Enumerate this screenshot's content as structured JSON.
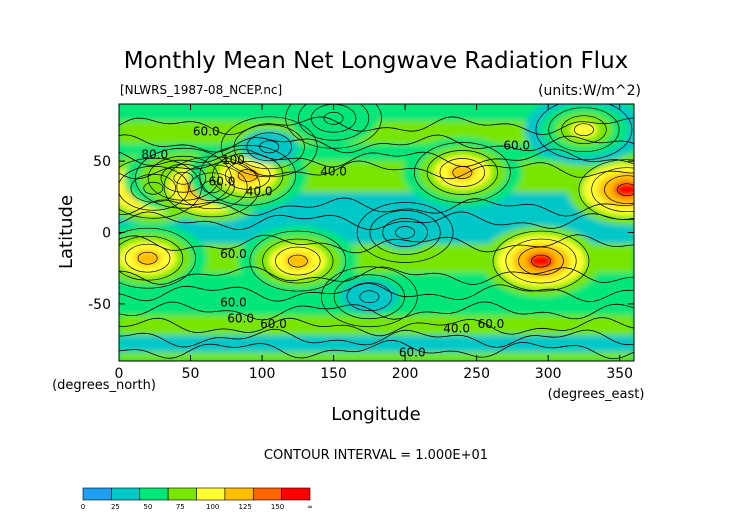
{
  "chart_data": {
    "type": "heatmap",
    "title": "Monthly Mean Net Longwave Radiation Flux",
    "subtitle_left": "[NLWRS_1987-08_NCEP.nc]",
    "subtitle_right": "(units:W/m^2)",
    "xlabel": "Longitude",
    "ylabel": "Latitude",
    "x_unit_label": "(degrees_east)",
    "y_unit_label": "(degrees_north)",
    "xlim": [
      0,
      360
    ],
    "ylim": [
      -90,
      90
    ],
    "x_ticks": [
      0,
      50,
      100,
      150,
      200,
      250,
      300,
      350
    ],
    "y_ticks": [
      -50,
      0,
      50
    ],
    "contour_interval_text": "CONTOUR INTERVAL = 1.000E+01",
    "contour_labels": [
      {
        "lon": 61,
        "lat": 68,
        "text": "60.0"
      },
      {
        "lon": 25,
        "lat": 52,
        "text": "80.0"
      },
      {
        "lon": 80,
        "lat": 48,
        "text": "100"
      },
      {
        "lon": 72,
        "lat": 33,
        "text": "60.0"
      },
      {
        "lon": 98,
        "lat": 26,
        "text": "40.0"
      },
      {
        "lon": 150,
        "lat": 40,
        "text": "40.0"
      },
      {
        "lon": 278,
        "lat": 58,
        "text": "60.0"
      },
      {
        "lon": 80,
        "lat": -18,
        "text": "60.0"
      },
      {
        "lon": 80,
        "lat": -52,
        "text": "60.0"
      },
      {
        "lon": 85,
        "lat": -63,
        "text": "60.0"
      },
      {
        "lon": 108,
        "lat": -67,
        "text": "60.0"
      },
      {
        "lon": 236,
        "lat": -70,
        "text": "40.0"
      },
      {
        "lon": 260,
        "lat": -67,
        "text": "60.0"
      },
      {
        "lon": 205,
        "lat": -87,
        "text": "60.0"
      }
    ],
    "color_levels": [
      0,
      25,
      50,
      75,
      100,
      125,
      150,
      "∞"
    ],
    "colorbar_colors": [
      "#1ea0f0",
      "#00c8c8",
      "#00e678",
      "#78e600",
      "#ffff33",
      "#ffbe00",
      "#ff6400",
      "#ff0000"
    ],
    "field_cells": [
      {
        "lon": 24,
        "lat": 31,
        "value": 150
      },
      {
        "lon": 45,
        "lat": 38,
        "value": 130
      },
      {
        "lon": 65,
        "lat": 32,
        "value": 150
      },
      {
        "lon": 90,
        "lat": 40,
        "value": 140
      },
      {
        "lon": 240,
        "lat": 42,
        "value": 125
      },
      {
        "lon": 355,
        "lat": 30,
        "value": 150
      },
      {
        "lon": 20,
        "lat": -18,
        "value": 125
      },
      {
        "lon": 125,
        "lat": -20,
        "value": 125
      },
      {
        "lon": 295,
        "lat": -20,
        "value": 160
      },
      {
        "lon": 325,
        "lat": 72,
        "value": 115
      },
      {
        "lon": 175,
        "lat": -45,
        "value": 30
      },
      {
        "lon": 200,
        "lat": 0,
        "value": 45
      },
      {
        "lon": 105,
        "lat": 60,
        "value": 30
      },
      {
        "lon": 150,
        "lat": 80,
        "value": 60
      }
    ]
  }
}
